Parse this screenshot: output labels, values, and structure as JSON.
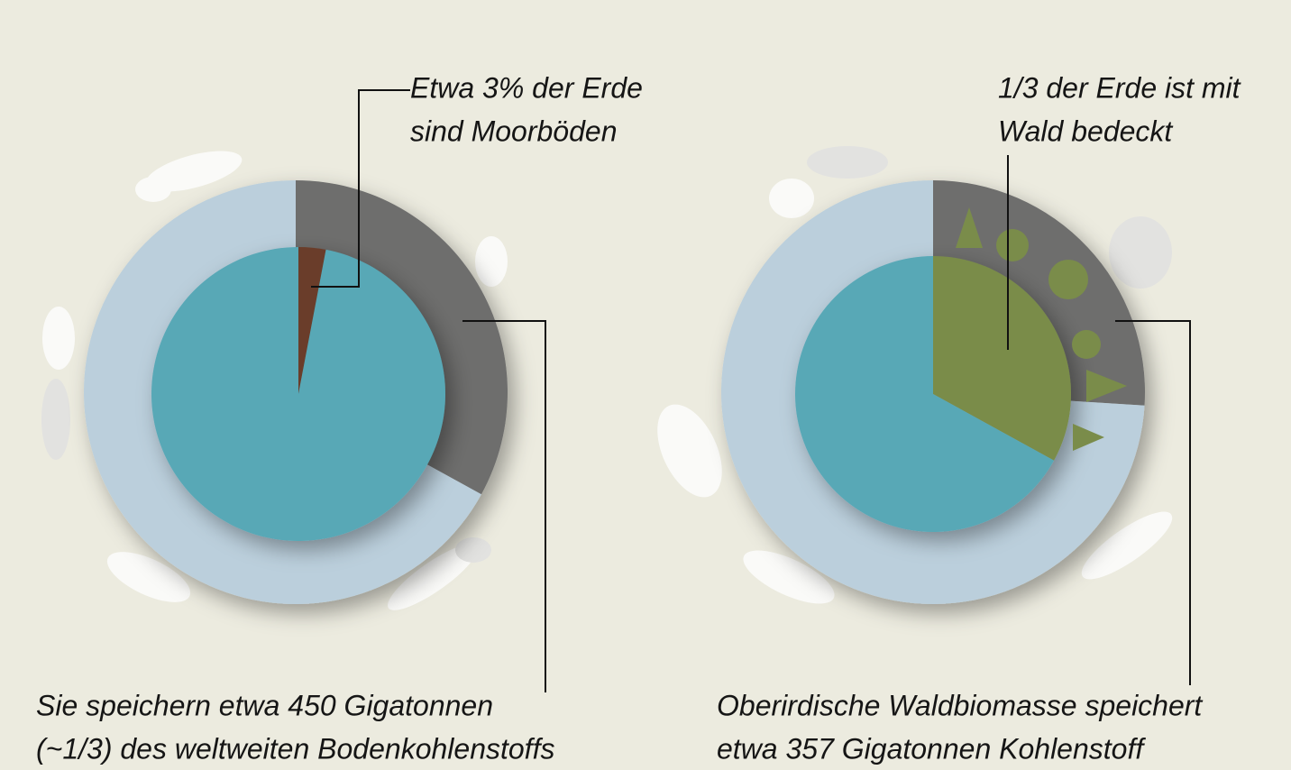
{
  "chart_data": [
    {
      "type": "donut",
      "outer": {
        "values": [
          33,
          67
        ],
        "colors": [
          "#6e6e6d",
          "#bbcfdc"
        ]
      },
      "inner": {
        "values": [
          3,
          97
        ],
        "colors": [
          "#6b3d2a",
          "#58a8b6"
        ]
      },
      "top_label": [
        "Etwa 3% der Erde",
        "sind Moorböden"
      ],
      "bottom_label": [
        "Sie speichern etwa 450 Gigatonnen",
        "(~1/3) des weltweiten Bodenkohlenstoffs"
      ]
    },
    {
      "type": "donut",
      "outer": {
        "values": [
          26,
          74
        ],
        "colors": [
          "#6e6e6d",
          "#bbcfdc"
        ]
      },
      "inner": {
        "values": [
          33,
          67
        ],
        "colors": [
          "#7a8c4a",
          "#58a8b6"
        ]
      },
      "top_label": [
        "1/3 der Erde ist mit",
        "Wald bedeckt"
      ],
      "bottom_label": [
        "Oberirdische Waldbiomasse speichert",
        "etwa 357 Gigatonnen Kohlenstoff"
      ]
    }
  ]
}
